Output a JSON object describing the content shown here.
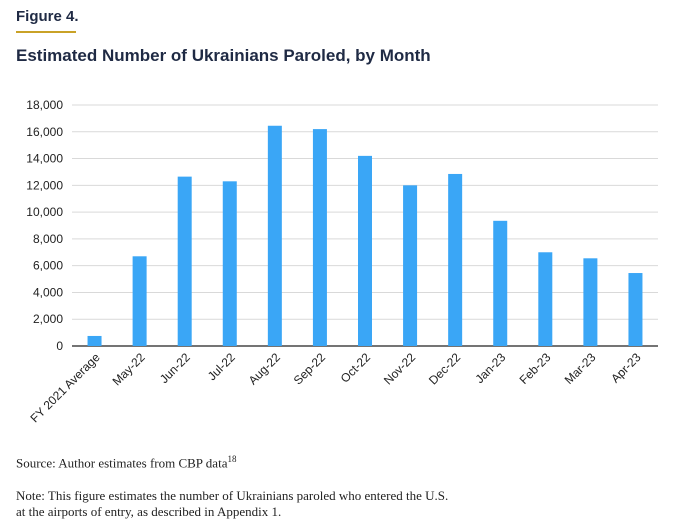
{
  "figure": {
    "label": "Figure 4.",
    "title": "Estimated Number of Ukrainians Paroled, by Month",
    "source_text": "Source: Author estimates from CBP data",
    "source_sup": "18",
    "note": "Note: This figure estimates the number of Ukrainians paroled who entered the U.S. at the airports of entry, as described in Appendix 1."
  },
  "chart_data": {
    "type": "bar",
    "title": "Estimated Number of Ukrainians Paroled, by Month",
    "xlabel": "",
    "ylabel": "",
    "categories": [
      "FY 2021 Average",
      "May-22",
      "Jun-22",
      "Jul-22",
      "Aug-22",
      "Sep-22",
      "Oct-22",
      "Nov-22",
      "Dec-22",
      "Jan-23",
      "Feb-23",
      "Mar-23",
      "Apr-23"
    ],
    "values": [
      750,
      6700,
      12650,
      12300,
      16450,
      16200,
      14200,
      12000,
      12850,
      9350,
      7000,
      6550,
      5450
    ],
    "ylim": [
      0,
      18000
    ],
    "yticks": [
      0,
      2000,
      4000,
      6000,
      8000,
      10000,
      12000,
      14000,
      16000,
      18000
    ],
    "ytick_labels": [
      "0",
      "2,000",
      "4,000",
      "6,000",
      "8,000",
      "10,000",
      "12,000",
      "14,000",
      "16,000",
      "18,000"
    ],
    "grid": true,
    "colors": {
      "bar": "#3aa6f6",
      "grid": "#d9d9d9",
      "axis": "#222222"
    }
  }
}
